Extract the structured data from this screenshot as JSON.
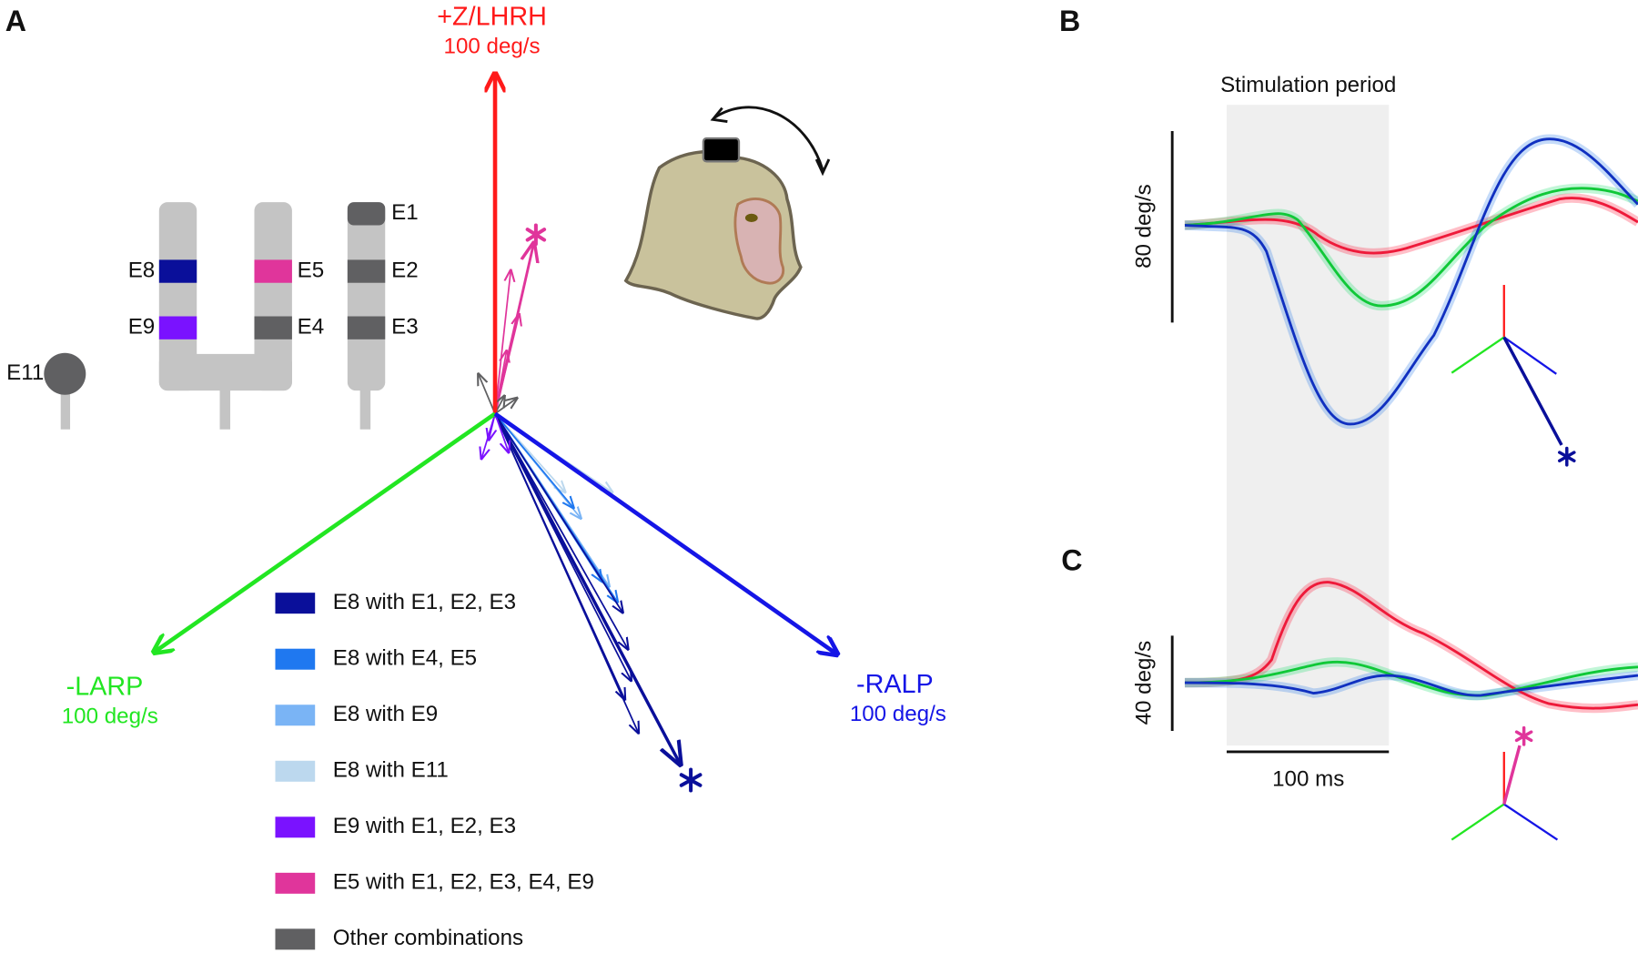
{
  "figure": {
    "panel_a": {
      "label": "A",
      "axes": [
        {
          "name": "+Z/LHRH",
          "scale": "100 deg/s",
          "color": "#ff1a1a"
        },
        {
          "name": "-LARP",
          "scale": "100 deg/s",
          "color": "#22e622"
        },
        {
          "name": "-RALP",
          "scale": "100 deg/s",
          "color": "#1515e6"
        }
      ],
      "electrodes": [
        {
          "name": "E1",
          "color": "#606062"
        },
        {
          "name": "E2",
          "color": "#606062"
        },
        {
          "name": "E3",
          "color": "#606062"
        },
        {
          "name": "E4",
          "color": "#606062"
        },
        {
          "name": "E5",
          "color": "#e0359b"
        },
        {
          "name": "E8",
          "color": "#0a0f9a"
        },
        {
          "name": "E9",
          "color": "#7a12ff"
        },
        {
          "name": "E11",
          "color": "#606062"
        }
      ],
      "legend": [
        {
          "label": "E8 with E1, E2, E3",
          "color": "#0a0f9a"
        },
        {
          "label": "E8 with E4, E5",
          "color": "#1f78f0"
        },
        {
          "label": "E8 with E9",
          "color": "#7ab4f5"
        },
        {
          "label": "E8 with E11",
          "color": "#bcd8ee"
        },
        {
          "label": "E9 with E1, E2, E3",
          "color": "#7a12ff"
        },
        {
          "label": "E5 with E1, E2, E3, E4, E9",
          "color": "#e0359b"
        },
        {
          "label": "Other combinations",
          "color": "#606062"
        }
      ]
    },
    "panel_b": {
      "label": "B",
      "shade_label": "Stimulation period",
      "scale_label": "80 deg/s"
    },
    "panel_c": {
      "label": "C",
      "scale_label": "40 deg/s",
      "time_label": "100 ms"
    }
  }
}
